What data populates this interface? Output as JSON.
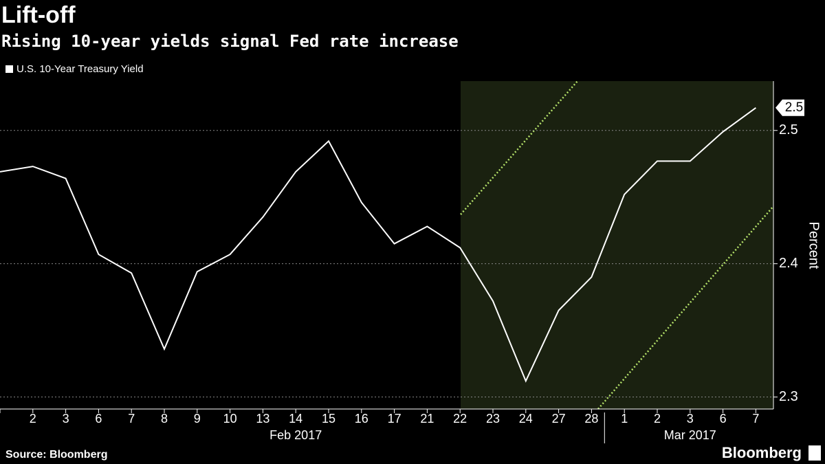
{
  "chart_data": {
    "type": "line",
    "title": "Lift-off",
    "subtitle": "Rising 10-year yields signal Fed rate increase",
    "y_label": "Percent",
    "source": "Source: Bloomberg",
    "brand": "Bloomberg",
    "categories": [
      null,
      "2",
      "3",
      "6",
      "7",
      "8",
      "9",
      "10",
      "13",
      "14",
      "15",
      "16",
      "17",
      "21",
      "22",
      "23",
      "24",
      "27",
      "28",
      "1",
      "2",
      "3",
      "6",
      "7"
    ],
    "x_groups": [
      {
        "label": "Feb 2017",
        "start": 0,
        "end": 18
      },
      {
        "label": "Mar 2017",
        "start": 19,
        "end": 23
      }
    ],
    "series": [
      {
        "name": "U.S. 10-Year Treasury Yield",
        "color": "#ffffff",
        "values": [
          2.469,
          2.473,
          2.464,
          2.407,
          2.393,
          2.336,
          2.394,
          2.407,
          2.435,
          2.469,
          2.492,
          2.446,
          2.415,
          2.428,
          2.412,
          2.372,
          2.312,
          2.365,
          2.39,
          2.452,
          2.477,
          2.477,
          2.499,
          2.517
        ],
        "value_labels": [
          null,
          null,
          null,
          null,
          null,
          null,
          null,
          null,
          null,
          null,
          null,
          null,
          null,
          null,
          null,
          null,
          null,
          null,
          null,
          null,
          null,
          null,
          null,
          "2.5"
        ]
      }
    ],
    "ylim": [
      2.291,
      2.537
    ],
    "yticks": [
      2.3,
      2.4,
      2.5
    ],
    "grid": true,
    "y_axis_side": "right"
  }
}
